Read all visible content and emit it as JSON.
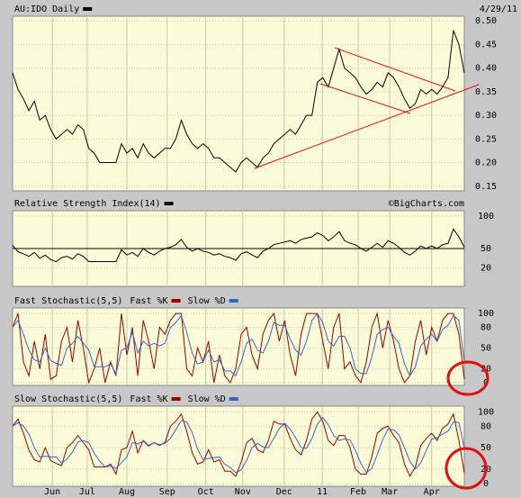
{
  "chart_data": [
    {
      "type": "line",
      "date": "4/29/11",
      "series": [
        {
          "name": "AU:IDO Daily",
          "color": "#000000",
          "values": [
            0.39,
            0.355,
            0.335,
            0.31,
            0.33,
            0.29,
            0.3,
            0.27,
            0.25,
            0.26,
            0.27,
            0.26,
            0.28,
            0.27,
            0.23,
            0.22,
            0.2,
            0.2,
            0.2,
            0.2,
            0.24,
            0.22,
            0.23,
            0.21,
            0.24,
            0.22,
            0.21,
            0.22,
            0.23,
            0.23,
            0.25,
            0.29,
            0.26,
            0.24,
            0.23,
            0.24,
            0.23,
            0.21,
            0.21,
            0.2,
            0.19,
            0.18,
            0.2,
            0.21,
            0.2,
            0.19,
            0.21,
            0.22,
            0.24,
            0.25,
            0.26,
            0.27,
            0.26,
            0.28,
            0.3,
            0.3,
            0.37,
            0.38,
            0.36,
            0.4,
            0.44,
            0.4,
            0.39,
            0.38,
            0.36,
            0.345,
            0.355,
            0.37,
            0.36,
            0.39,
            0.38,
            0.36,
            0.335,
            0.315,
            0.325,
            0.355,
            0.345,
            0.355,
            0.345,
            0.36,
            0.38,
            0.48,
            0.45,
            0.39
          ]
        }
      ],
      "ylim": [
        0.14,
        0.51
      ],
      "yticks": [
        0.15,
        {
          "value": 0.2,
          "label": "0.20"
        },
        0.25,
        {
          "value": 0.3,
          "label": "0.30"
        },
        0.35,
        {
          "value": 0.4,
          "label": "0.40"
        },
        0.45,
        {
          "value": 0.5,
          "label": "0.50"
        }
      ],
      "grid": true
    },
    {
      "type": "line",
      "copyright": "©BigCharts.com",
      "series": [
        {
          "name": "Relative Strength Index(14)",
          "color": "#000000",
          "values": [
            55,
            45,
            42,
            38,
            44,
            35,
            40,
            33,
            30,
            36,
            38,
            34,
            42,
            38,
            30,
            30,
            30,
            30,
            30,
            30,
            48,
            40,
            44,
            38,
            50,
            44,
            40,
            46,
            50,
            52,
            56,
            64,
            52,
            46,
            50,
            46,
            44,
            40,
            42,
            38,
            36,
            32,
            42,
            45,
            40,
            36,
            46,
            50,
            56,
            58,
            60,
            62,
            58,
            64,
            66,
            68,
            74,
            70,
            62,
            68,
            76,
            62,
            58,
            56,
            50,
            46,
            52,
            58,
            52,
            62,
            58,
            52,
            44,
            40,
            46,
            54,
            50,
            54,
            50,
            56,
            58,
            80,
            68,
            52
          ]
        }
      ],
      "hline": 50,
      "ylim": [
        -8,
        108
      ],
      "yticks": [
        20,
        50,
        100
      ],
      "grid": true
    },
    {
      "type": "line",
      "title": "Fast Stochastic(5,5)",
      "series": [
        {
          "name": "Fast %K",
          "color": "#990000",
          "values": [
            80,
            100,
            30,
            10,
            60,
            20,
            70,
            5,
            10,
            60,
            80,
            30,
            90,
            50,
            0,
            20,
            50,
            0,
            30,
            10,
            100,
            40,
            80,
            10,
            90,
            60,
            20,
            80,
            70,
            90,
            100,
            100,
            20,
            10,
            50,
            30,
            60,
            0,
            40,
            10,
            0,
            20,
            70,
            80,
            40,
            20,
            70,
            90,
            100,
            60,
            90,
            40,
            10,
            70,
            100,
            100,
            100,
            60,
            20,
            80,
            100,
            20,
            30,
            10,
            0,
            30,
            80,
            100,
            50,
            90,
            60,
            20,
            0,
            10,
            60,
            90,
            40,
            80,
            60,
            90,
            100,
            100,
            70,
            5
          ]
        },
        {
          "name": "Slow %D",
          "color": "#3366cc",
          "values": [
            80,
            90,
            70,
            47,
            33,
            30,
            50,
            32,
            28,
            25,
            50,
            57,
            67,
            57,
            47,
            23,
            23,
            23,
            27,
            13,
            47,
            50,
            73,
            43,
            60,
            53,
            57,
            53,
            57,
            80,
            87,
            97,
            73,
            43,
            27,
            30,
            47,
            30,
            33,
            17,
            17,
            10,
            30,
            57,
            63,
            47,
            43,
            60,
            87,
            83,
            83,
            63,
            47,
            40,
            60,
            90,
            100,
            87,
            60,
            53,
            67,
            67,
            50,
            20,
            13,
            13,
            37,
            70,
            77,
            80,
            67,
            57,
            27,
            10,
            23,
            53,
            63,
            70,
            60,
            77,
            83,
            97,
            90,
            30
          ]
        }
      ],
      "ylim": [
        -4,
        108
      ],
      "yticks": [
        0,
        20,
        50,
        80,
        100
      ],
      "grid": true
    },
    {
      "type": "line",
      "title": "Slow Stochastic(5,5)",
      "series": [
        {
          "name": "Fast %K",
          "color": "#990000",
          "values": [
            80,
            90,
            70,
            47,
            33,
            30,
            50,
            32,
            28,
            25,
            50,
            57,
            67,
            57,
            47,
            23,
            23,
            23,
            27,
            13,
            47,
            50,
            73,
            43,
            60,
            53,
            57,
            53,
            57,
            80,
            87,
            97,
            73,
            43,
            27,
            30,
            47,
            30,
            33,
            17,
            17,
            10,
            30,
            57,
            63,
            47,
            43,
            60,
            87,
            83,
            83,
            63,
            47,
            40,
            60,
            90,
            100,
            87,
            60,
            53,
            67,
            67,
            50,
            20,
            13,
            13,
            37,
            70,
            77,
            80,
            67,
            57,
            27,
            10,
            23,
            53,
            63,
            70,
            60,
            77,
            83,
            97,
            60,
            15
          ]
        },
        {
          "name": "Slow %D",
          "color": "#3366cc",
          "values": [
            80,
            85,
            80,
            69,
            50,
            37,
            38,
            37,
            37,
            28,
            34,
            44,
            58,
            60,
            57,
            42,
            31,
            23,
            24,
            21,
            29,
            37,
            57,
            55,
            59,
            52,
            57,
            54,
            56,
            63,
            75,
            88,
            86,
            71,
            48,
            33,
            35,
            36,
            37,
            27,
            22,
            15,
            19,
            32,
            50,
            56,
            51,
            50,
            63,
            77,
            84,
            76,
            64,
            50,
            49,
            63,
            83,
            92,
            82,
            67,
            60,
            62,
            61,
            46,
            28,
            15,
            21,
            40,
            61,
            76,
            75,
            68,
            50,
            31,
            20,
            29,
            46,
            62,
            64,
            69,
            73,
            86,
            85,
            50
          ]
        }
      ],
      "ylim": [
        -4,
        108
      ],
      "yticks": [
        0,
        20,
        50,
        80,
        100
      ],
      "grid": true,
      "xlim": [
        0,
        83
      ],
      "xticks": [
        {
          "value": 7.3,
          "label": "Jun"
        },
        {
          "value": 13.7,
          "label": "Jul"
        },
        {
          "value": 21,
          "label": "Aug"
        },
        {
          "value": 28.4,
          "label": "Sep"
        },
        {
          "value": 35.5,
          "label": "Oct"
        },
        {
          "value": 42.3,
          "label": "Nov"
        },
        {
          "value": 49.9,
          "label": "Dec"
        },
        {
          "value": 56.9,
          "label": "11"
        },
        {
          "value": 63.5,
          "label": "Feb"
        },
        {
          "value": 69.3,
          "label": "Mar"
        },
        {
          "value": 77,
          "label": "Apr"
        }
      ]
    }
  ]
}
